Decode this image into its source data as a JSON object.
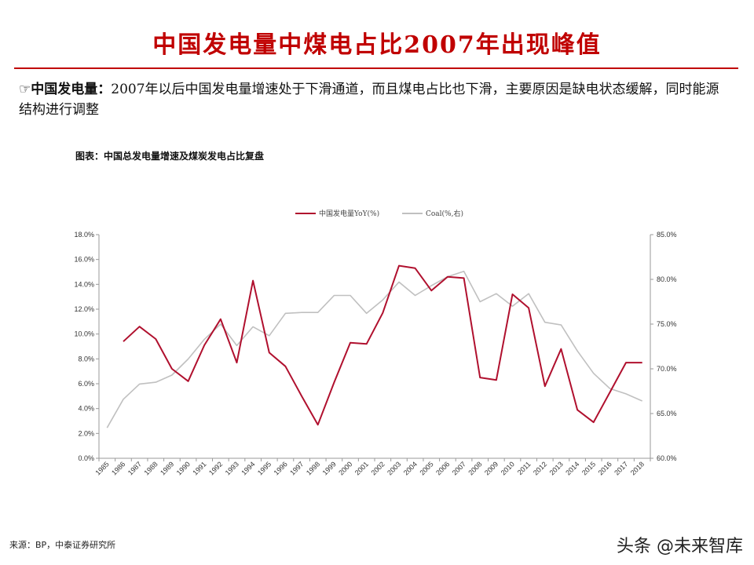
{
  "header": {
    "title": "中国发电量中煤电占比2007年出现峰值"
  },
  "bullet": {
    "marker": "☞",
    "lead": "中国发电量：",
    "text": "2007年以后中国发电量增速处于下滑通道，而且煤电占比也下滑，主要原因是缺电状态缓解，同时能源结构进行调整"
  },
  "chart_caption": "图表：中国总发电量增速及煤炭发电占比复盘",
  "chart_data": {
    "type": "line",
    "title": "",
    "x": [
      "1985",
      "1986",
      "1987",
      "1988",
      "1989",
      "1990",
      "1991",
      "1992",
      "1993",
      "1994",
      "1995",
      "1996",
      "1997",
      "1998",
      "1999",
      "2000",
      "2001",
      "2002",
      "2003",
      "2004",
      "2005",
      "2006",
      "2007",
      "2008",
      "2009",
      "2010",
      "2011",
      "2012",
      "2013",
      "2014",
      "2015",
      "2016",
      "2017",
      "2018"
    ],
    "series": [
      {
        "name": "中国发电量YoY(%)",
        "axis": "left",
        "color": "#b0102e",
        "values": [
          null,
          9.4,
          10.6,
          9.6,
          7.2,
          6.2,
          9.1,
          11.2,
          7.7,
          14.3,
          8.5,
          7.4,
          5.0,
          2.7,
          6.1,
          9.3,
          9.2,
          11.7,
          15.5,
          15.3,
          13.5,
          14.6,
          14.5,
          6.5,
          6.3,
          13.2,
          12.1,
          5.8,
          8.8,
          3.9,
          2.9,
          5.3,
          7.7,
          7.7
        ]
      },
      {
        "name": "Coal(%,右)",
        "axis": "right",
        "color": "#c0c0c0",
        "values": [
          63.4,
          66.6,
          68.3,
          68.5,
          69.3,
          71.1,
          73.3,
          75.0,
          72.6,
          74.7,
          73.7,
          76.2,
          76.3,
          76.3,
          78.2,
          78.2,
          76.2,
          77.7,
          79.7,
          78.2,
          79.3,
          80.3,
          80.9,
          77.5,
          78.4,
          77.0,
          78.4,
          75.2,
          74.9,
          72.0,
          69.5,
          67.8,
          67.2,
          66.4
        ]
      }
    ],
    "y_left": {
      "min": 0,
      "max": 18,
      "step": 2,
      "tick_labels": [
        "0.0%",
        "2.0%",
        "4.0%",
        "6.0%",
        "8.0%",
        "10.0%",
        "12.0%",
        "14.0%",
        "16.0%",
        "18.0%"
      ]
    },
    "y_right": {
      "min": 60,
      "max": 85,
      "step": 5,
      "tick_labels": [
        "60.0%",
        "65.0%",
        "70.0%",
        "75.0%",
        "80.0%",
        "85.0%"
      ]
    },
    "grid": false,
    "legend_position": "top-center"
  },
  "footer": {
    "source": "来源：BP，中泰证券研究所",
    "watermark": "头条 @未来智库"
  }
}
